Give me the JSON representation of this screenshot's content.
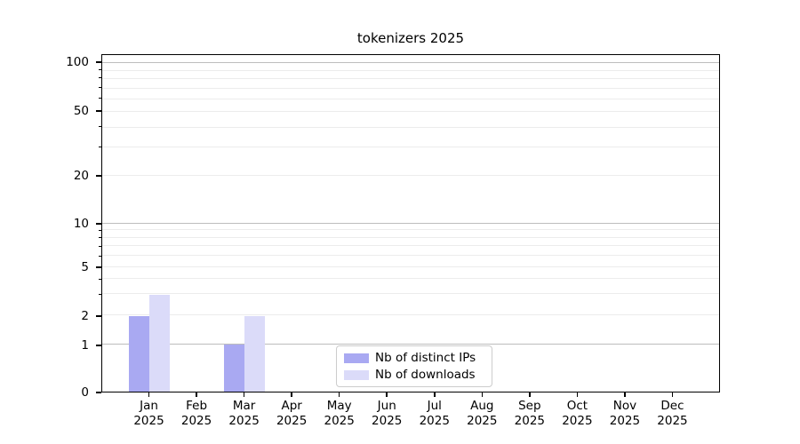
{
  "figure": {
    "background": "#ffffff",
    "text_color": "#000000"
  },
  "chart_data": {
    "type": "bar",
    "title": "tokenizers 2025",
    "xlabel": "",
    "ylabel": "",
    "categories": [
      "Jan",
      "Feb",
      "Mar",
      "Apr",
      "May",
      "Jun",
      "Jul",
      "Aug",
      "Sep",
      "Oct",
      "Nov",
      "Dec"
    ],
    "category_year_line": "2025",
    "series": [
      {
        "name": "Nb of distinct IPs",
        "color": "#a9a9f2",
        "values": [
          2,
          0,
          1,
          0,
          0,
          0,
          0,
          0,
          0,
          0,
          0,
          0
        ]
      },
      {
        "name": "Nb of downloads",
        "color": "#dbdbf9",
        "values": [
          3,
          0,
          2,
          0,
          0,
          0,
          0,
          0,
          0,
          0,
          0,
          0
        ]
      }
    ],
    "yscale": "symlog",
    "ylim_bottom": 0,
    "y_ticks": [
      0,
      1,
      2,
      5,
      10,
      20,
      50,
      100
    ],
    "y_tick_labels": [
      "0",
      "1",
      "2",
      "5",
      "10",
      "20",
      "50",
      "100"
    ],
    "grid": {
      "major_values": [
        1,
        10,
        100
      ],
      "minor_values": [
        2,
        3,
        4,
        5,
        6,
        7,
        8,
        9,
        20,
        30,
        40,
        50,
        60,
        70,
        80,
        90
      ],
      "major_color": "#bdbdbd",
      "minor_color": "#ececec"
    },
    "legend_position": "lower center",
    "scale_anchors": [
      [
        0,
        1.0
      ],
      [
        1,
        0.8609
      ],
      [
        2,
        0.7743
      ],
      [
        5,
        0.6299
      ],
      [
        10,
        0.5013
      ],
      [
        20,
        0.3596
      ],
      [
        50,
        0.168
      ],
      [
        100,
        0.0236
      ]
    ]
  },
  "legend": {
    "items": [
      {
        "label": "Nb of distinct IPs",
        "color": "#a9a9f2"
      },
      {
        "label": "Nb of downloads",
        "color": "#dbdbf9"
      }
    ]
  }
}
